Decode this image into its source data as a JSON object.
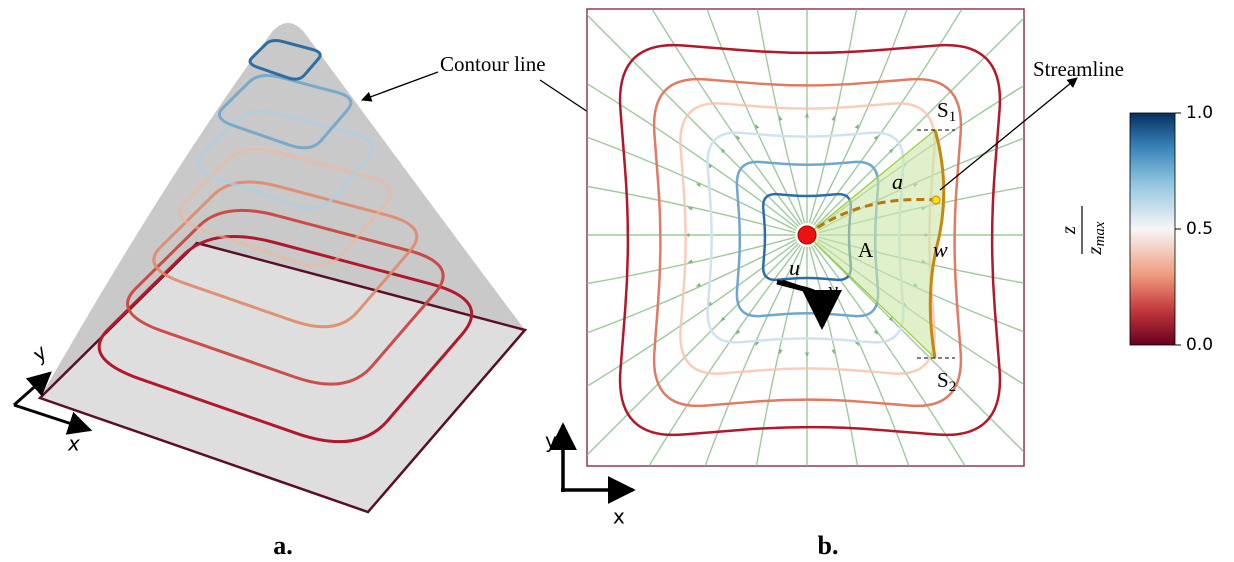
{
  "panel_a": {
    "label": "a.",
    "callout": "Contour line",
    "axis_x": "x",
    "axis_y": "y"
  },
  "panel_b": {
    "label": "b.",
    "callout": "Streamline",
    "axis_x": "x",
    "axis_y": "y",
    "s1": {
      "letter": "S",
      "sub": "1"
    },
    "s2": {
      "letter": "S",
      "sub": "2"
    },
    "path_label": "a",
    "area_label": "A",
    "width_label": "w",
    "u_label": "u",
    "v_label": "v"
  },
  "colorbar": {
    "label": {
      "numerator": "z",
      "denominator": "z",
      "denominator_sub": "max"
    },
    "lim": [
      0,
      1
    ],
    "ticks": [
      {
        "value": 1,
        "label": "1.0"
      },
      {
        "value": 0.5,
        "label": "0.5"
      },
      {
        "value": 0,
        "label": "0.0"
      }
    ]
  }
}
